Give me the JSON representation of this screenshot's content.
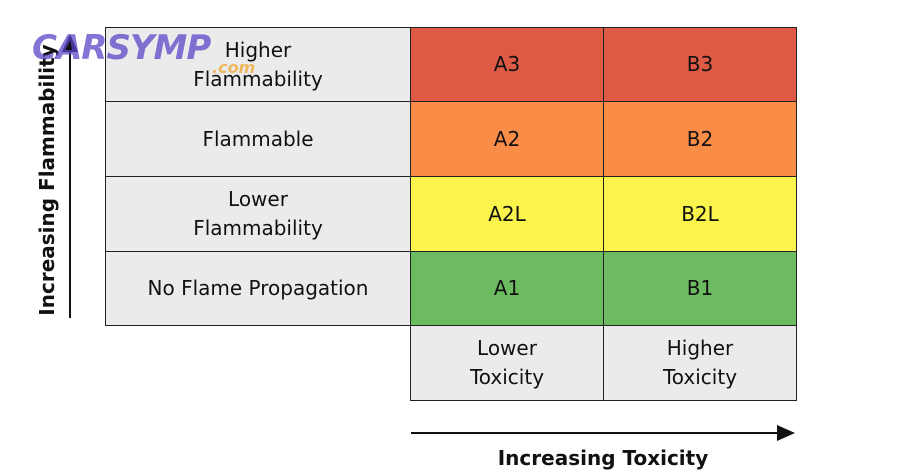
{
  "watermark": {
    "text": "CARSYMP",
    "suffix": ".com"
  },
  "y_axis": {
    "label": "Increasing Flammability"
  },
  "x_axis": {
    "label": "Increasing Toxicity"
  },
  "rows": [
    {
      "label": [
        "Higher",
        "Flammability"
      ],
      "cells": [
        "A3",
        "B3"
      ],
      "color": "#df5a45"
    },
    {
      "label": [
        "Flammable"
      ],
      "cells": [
        "A2",
        "B2"
      ],
      "color": "#f98d47"
    },
    {
      "label": [
        "Lower",
        "Flammability"
      ],
      "cells": [
        "A2L",
        "B2L"
      ],
      "color": "#fbf44c"
    },
    {
      "label": [
        "No Flame Propagation"
      ],
      "cells": [
        "A1",
        "B1"
      ],
      "color": "#6dbb60"
    }
  ],
  "columns": [
    [
      "Lower",
      "Toxicity"
    ],
    [
      "Higher",
      "Toxicity"
    ]
  ]
}
